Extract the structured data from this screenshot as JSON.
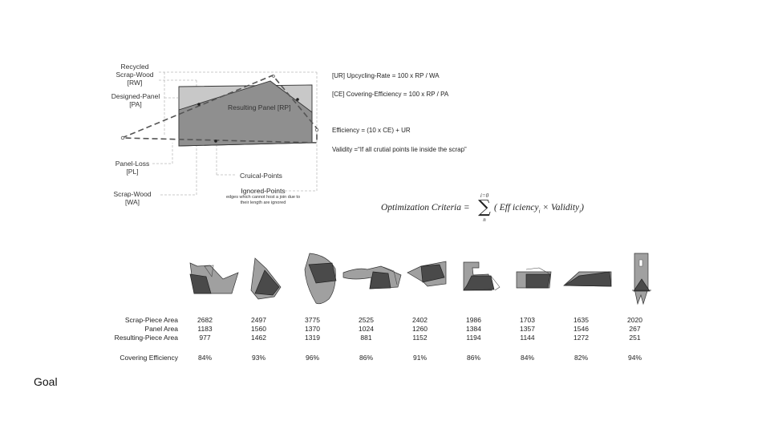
{
  "diagram": {
    "labels": {
      "recycled_scrap_wood": [
        "Recycled",
        "Scrap-Wood",
        "[RW]"
      ],
      "designed_panel": [
        "Designed-Panel",
        "[PA]"
      ],
      "resulting_panel": "Resulting Panel [RP]",
      "panel_loss": [
        "Panel-Loss",
        "[PL]"
      ],
      "scrap_wood": [
        "Scrap-Wood",
        "[WA]"
      ],
      "crucial_points": "Cruical-Points",
      "ignored_points": "Ignored-Points",
      "ignored_note": [
        "edges which cannot host a join due to",
        "their length are ignored"
      ]
    },
    "formulas": [
      "[UR] Upcycling-Rate = 100 x RP / WA",
      "[CE] Covering-Efficiency = 100 x RP / PA",
      "Efficiency = (10 x CE) + UR",
      "Validity =“If all crutial points lie inside the scrap”"
    ],
    "criteria": {
      "left": "Optimization Criteria =",
      "sum_top": "i=0",
      "sum_symbol": "∑",
      "sum_bottom": "n",
      "right": "( Eff iciency",
      "sub_i": "i",
      "times": "× Validity",
      "close": ")"
    }
  },
  "table": {
    "rows": [
      {
        "label": "Scrap-Piece Area",
        "values": [
          "2682",
          "2497",
          "3775",
          "2525",
          "2402",
          "1986",
          "1703",
          "1635",
          "2020"
        ]
      },
      {
        "label": "Panel Area",
        "values": [
          "1183",
          "1560",
          "1370",
          "1024",
          "1260",
          "1384",
          "1357",
          "1546",
          "267"
        ]
      },
      {
        "label": "Resulting-Piece Area",
        "values": [
          "977",
          "1462",
          "1319",
          "881",
          "1152",
          "1194",
          "1144",
          "1272",
          "251"
        ]
      },
      {
        "label": "",
        "values": [
          "",
          "",
          "",
          "",
          "",
          "",
          "",
          "",
          ""
        ]
      },
      {
        "label": "Covering Efficiency",
        "values": [
          "84%",
          "93%",
          "96%",
          "86%",
          "91%",
          "86%",
          "84%",
          "82%",
          "94%"
        ]
      }
    ]
  },
  "footer": {
    "goal": "Goal"
  },
  "colors": {
    "light_gray": "#c8c8c8",
    "mid_gray": "#999999",
    "dark_gray": "#4a4a4a",
    "line": "#333333"
  }
}
